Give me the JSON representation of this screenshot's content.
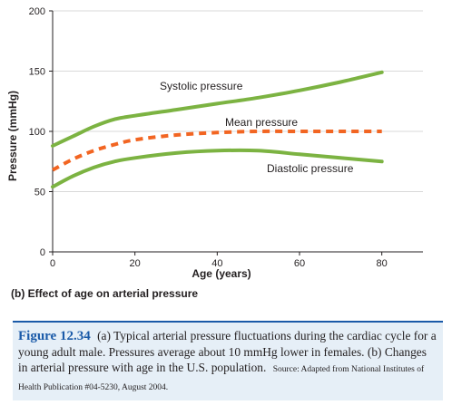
{
  "chart_data": {
    "type": "line",
    "title": "(b) Effect of age on arterial pressure",
    "xlabel": "Age (years)",
    "ylabel": "Pressure (mmHg)",
    "xlim": [
      0,
      90
    ],
    "ylim": [
      0,
      200
    ],
    "x_ticks": [
      0,
      20,
      40,
      60,
      80
    ],
    "y_ticks": [
      0,
      50,
      100,
      150,
      200
    ],
    "grid": "horizontal",
    "series": [
      {
        "name": "Systolic pressure",
        "style": "solid",
        "color": "#7cb342",
        "x": [
          0,
          5,
          10,
          15,
          20,
          30,
          40,
          50,
          60,
          70,
          80
        ],
        "y": [
          88,
          96,
          104,
          110,
          113,
          118,
          123,
          128,
          134,
          141,
          149
        ]
      },
      {
        "name": "Mean pressure",
        "style": "dashed",
        "color": "#f26522",
        "x": [
          0,
          5,
          10,
          15,
          20,
          30,
          40,
          50,
          60,
          70,
          80
        ],
        "y": [
          68,
          77,
          84,
          89,
          93,
          97,
          99,
          100,
          100,
          100,
          100
        ]
      },
      {
        "name": "Diastolic pressure",
        "style": "solid",
        "color": "#7cb342",
        "x": [
          0,
          5,
          10,
          15,
          20,
          30,
          40,
          50,
          60,
          70,
          80
        ],
        "y": [
          54,
          63,
          70,
          75,
          78,
          82,
          84,
          84,
          81,
          78,
          75
        ]
      }
    ]
  },
  "caption": {
    "figure_label": "Figure 12.34",
    "text": "(a) Typical arterial pressure fluctuations during the cardiac cycle for a young adult male. Pressures average about 10 mmHg lower in females. (b) Changes in arterial pressure with age in the U.S. population.",
    "source": "Source: Adapted from National Institutes of Health Publication #04-5230, August 2004."
  }
}
